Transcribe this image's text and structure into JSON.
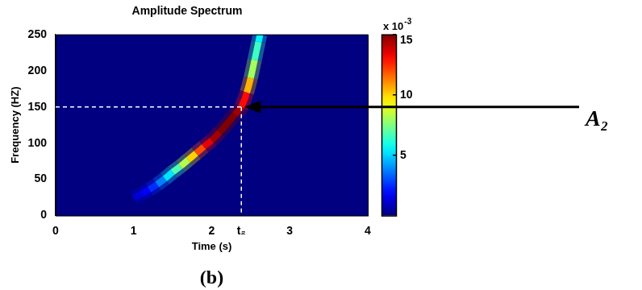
{
  "chart_data": {
    "type": "heatmap",
    "title": "Amplitude Spectrum",
    "x_label": "Time (s)",
    "y_label": "Frequency (HZ)",
    "xlim": [
      0,
      4
    ],
    "xticks": [
      0,
      1,
      2,
      {
        "value": 2.38,
        "label": "t₂"
      },
      3,
      4
    ],
    "ylim": [
      0,
      250
    ],
    "yticks": [
      0,
      50,
      100,
      150,
      200,
      250
    ],
    "cells": [
      {
        "time": 1.0,
        "frequency": 25,
        "amplitude": 0.001
      },
      {
        "time": 1.1,
        "frequency": 30,
        "amplitude": 0.0015
      },
      {
        "time": 1.2,
        "frequency": 36,
        "amplitude": 0.002
      },
      {
        "time": 1.3,
        "frequency": 43,
        "amplitude": 0.003
      },
      {
        "time": 1.4,
        "frequency": 51,
        "amplitude": 0.0045
      },
      {
        "time": 1.5,
        "frequency": 60,
        "amplitude": 0.006
      },
      {
        "time": 1.6,
        "frequency": 68,
        "amplitude": 0.0075
      },
      {
        "time": 1.7,
        "frequency": 77,
        "amplitude": 0.009
      },
      {
        "time": 1.8,
        "frequency": 86,
        "amplitude": 0.011
      },
      {
        "time": 1.9,
        "frequency": 95,
        "amplitude": 0.013
      },
      {
        "time": 2.0,
        "frequency": 104,
        "amplitude": 0.014
      },
      {
        "time": 2.1,
        "frequency": 115,
        "amplitude": 0.015
      },
      {
        "time": 2.2,
        "frequency": 127,
        "amplitude": 0.015
      },
      {
        "time": 2.3,
        "frequency": 140,
        "amplitude": 0.015
      },
      {
        "time": 2.38,
        "frequency": 150,
        "amplitude": 0.014
      },
      {
        "time": 2.45,
        "frequency": 170,
        "amplitude": 0.012
      },
      {
        "time": 2.5,
        "frequency": 190,
        "amplitude": 0.009
      },
      {
        "time": 2.55,
        "frequency": 215,
        "amplitude": 0.007
      },
      {
        "time": 2.6,
        "frequency": 240,
        "amplitude": 0.006
      },
      {
        "time": 2.62,
        "frequency": 250,
        "amplitude": 0.005
      }
    ],
    "colorbar": {
      "range": [
        0,
        0.015
      ],
      "ticks": [
        {
          "value": 0.005,
          "label": "5"
        },
        {
          "value": 0.01,
          "label": "10"
        },
        {
          "value": 0.015,
          "label": "15"
        }
      ],
      "multiplier": {
        "base": "x 10",
        "exponent": "-3"
      }
    },
    "guides": {
      "x": 2.38,
      "y": 150
    },
    "annotations": [
      {
        "text": "A₂",
        "x": 2.38,
        "y": 150
      }
    ],
    "panel_label": "(b)"
  }
}
